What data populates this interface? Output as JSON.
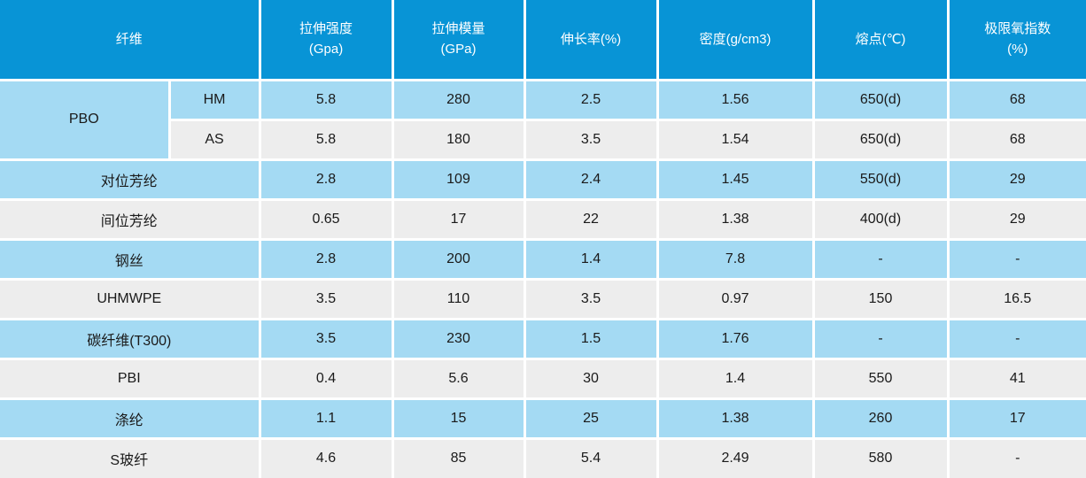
{
  "colors": {
    "header_bg": "#0894d6",
    "row_blue": "#a4daf3",
    "row_gray": "#ededed",
    "header_text": "#ffffff",
    "body_text": "#1a1a1a"
  },
  "chart_data": {
    "type": "table",
    "header": {
      "fiber_label": "纤维",
      "col_labels": [
        "拉伸强度\n(Gpa)",
        "拉伸模量\n(GPa)",
        "伸长率(%)",
        "密度(g/cm3)",
        "熔点(℃)",
        "极限氧指数\n(%)"
      ]
    },
    "rows": [
      {
        "fiber": "PBO",
        "fiber_rowspan": 2,
        "grade": "HM",
        "values": [
          "5.8",
          "280",
          "2.5",
          "1.56",
          "650(d)",
          "68"
        ]
      },
      {
        "grade": "AS",
        "values": [
          "5.8",
          "180",
          "3.5",
          "1.54",
          "650(d)",
          "68"
        ]
      },
      {
        "fiber": "对位芳纶",
        "values": [
          "2.8",
          "109",
          "2.4",
          "1.45",
          "550(d)",
          "29"
        ]
      },
      {
        "fiber": "间位芳纶",
        "values": [
          "0.65",
          "17",
          "22",
          "1.38",
          "400(d)",
          "29"
        ]
      },
      {
        "fiber": "钢丝",
        "values": [
          "2.8",
          "200",
          "1.4",
          "7.8",
          "-",
          "-"
        ]
      },
      {
        "fiber": "UHMWPE",
        "values": [
          "3.5",
          "110",
          "3.5",
          "0.97",
          "150",
          "16.5"
        ]
      },
      {
        "fiber": "碳纤维(T300)",
        "values": [
          "3.5",
          "230",
          "1.5",
          "1.76",
          "-",
          "-"
        ]
      },
      {
        "fiber": "PBI",
        "values": [
          "0.4",
          "5.6",
          "30",
          "1.4",
          "550",
          "41"
        ]
      },
      {
        "fiber": "涤纶",
        "values": [
          "1.1",
          "15",
          "25",
          "1.38",
          "260",
          "17"
        ]
      },
      {
        "fiber": "S玻纤",
        "values": [
          "4.6",
          "85",
          "5.4",
          "2.49",
          "580",
          "-"
        ]
      }
    ]
  }
}
